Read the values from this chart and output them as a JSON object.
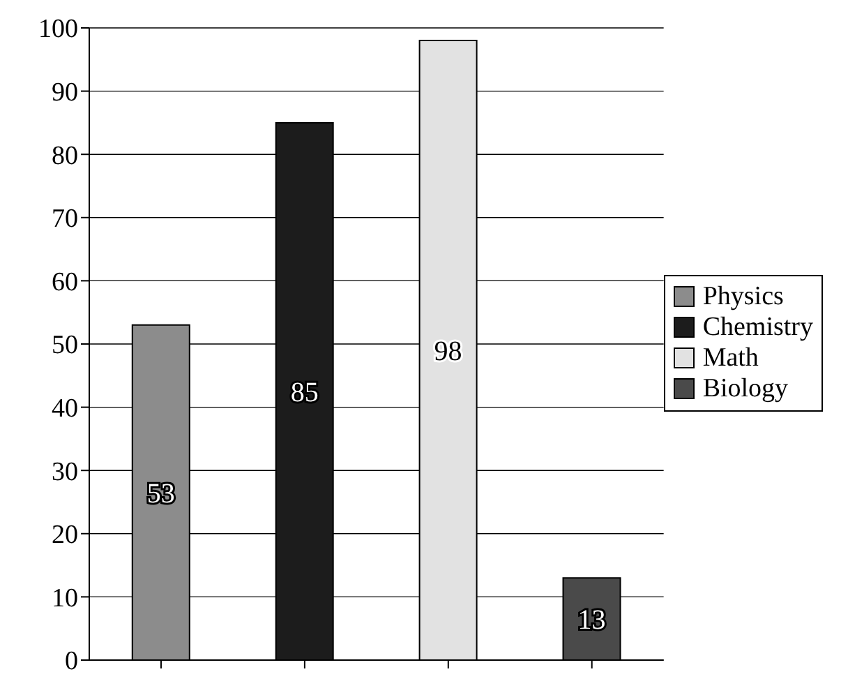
{
  "chart_data": {
    "type": "bar",
    "categories": [
      null,
      null,
      null,
      null
    ],
    "stacked": true,
    "series": [
      {
        "name": "Physics",
        "color": "#8c8c8c",
        "values": [
          53,
          null,
          null,
          null
        ]
      },
      {
        "name": "Chemistry",
        "color": "#1c1c1c",
        "values": [
          null,
          85,
          null,
          null
        ]
      },
      {
        "name": "Math",
        "color": "#e2e2e2",
        "values": [
          null,
          null,
          98,
          null
        ]
      },
      {
        "name": "Biology",
        "color": "#4a4a4a",
        "values": [
          null,
          null,
          null,
          13
        ]
      }
    ],
    "ylim": [
      0,
      100
    ],
    "yticks": [
      0,
      10,
      20,
      30,
      40,
      50,
      60,
      70,
      80,
      90,
      100
    ],
    "grid": "y",
    "legend": "right",
    "data_labels": true
  }
}
